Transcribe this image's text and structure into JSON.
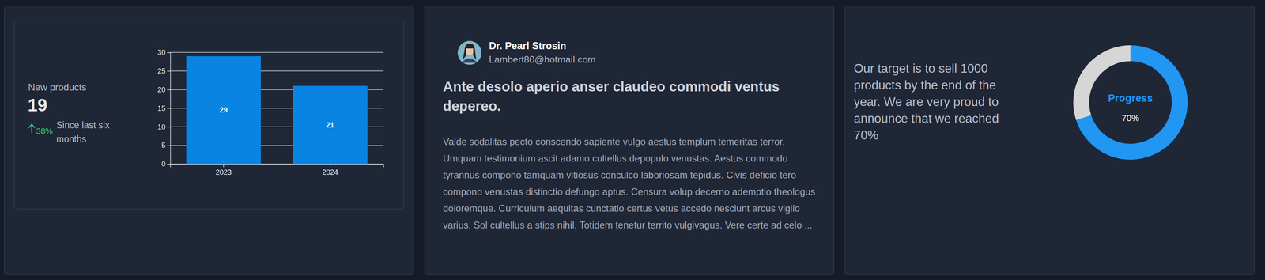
{
  "chart_data": [
    {
      "type": "bar",
      "categories": [
        "2023",
        "2024"
      ],
      "values": [
        29,
        21
      ],
      "color": "#0a84e2",
      "ylim": [
        0,
        30
      ],
      "yticks": [
        0,
        5,
        10,
        15,
        20,
        25,
        30
      ],
      "grid": true,
      "data_labels": true
    },
    {
      "type": "donut",
      "title": "Progress",
      "values": [
        70,
        30
      ],
      "value_labels": [
        "70%",
        null
      ],
      "colors": [
        "#2196f3",
        "#d6d6d6"
      ],
      "data_labels": true
    }
  ],
  "stats_card": {
    "label": "New products",
    "value": 19,
    "change": "38%",
    "note": "Since last six months"
  },
  "post": {
    "author": "Dr. Pearl Strosin",
    "email": "Lambert80@hotmail.com",
    "title": "Ante desolo aperio anser claudeo commodi ventus depereo.",
    "body": "Valde sodalitas pecto conscendo sapiente vulgo aestus templum temeritas terror. Umquam testimonium ascit adamo cultellus depopulo venustas. Aestus commodo tyrannus compono tamquam vitiosus conculco laboriosam tepidus. Civis deficio tero compono venustas distinctio defungo aptus. Censura volup decerno ademptio theologus doloremque. Curriculum aequitas cunctatio certus vetus accedo nesciunt arcus vigilo varius. Sol cultellus a stips nihil. Totidem tenetur territo vulgivagus. Vere certe ad celo ..."
  },
  "target_card": {
    "text": "Our target is to sell 1000 products by the end of the year. We are very proud to announce that we reached 70%"
  }
}
